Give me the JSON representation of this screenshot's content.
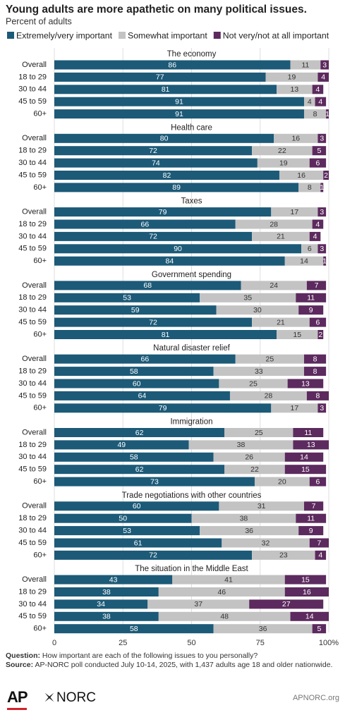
{
  "chart_data": {
    "type": "stacked-bar",
    "title": "Young adults are more apathetic on many political issues.",
    "subtitle": "Percent of adults",
    "series": [
      {
        "name": "Extremely/very important",
        "color": "#1c5a78"
      },
      {
        "name": "Somewhat important",
        "color": "#c3c3c3"
      },
      {
        "name": "Not very/not at all important",
        "color": "#5c2a5e"
      }
    ],
    "xlim": [
      0,
      100
    ],
    "xticks": [
      0,
      25,
      50,
      75,
      {
        "value": 100,
        "label": "100%"
      }
    ],
    "grid": true,
    "panels": [
      {
        "title": "The economy",
        "categories": [
          "Overall",
          "18 to 29",
          "30 to 44",
          "45 to 59",
          "60+"
        ],
        "values": [
          [
            86,
            77,
            81,
            91,
            91
          ],
          [
            11,
            19,
            13,
            4,
            8
          ],
          [
            3,
            4,
            4,
            4,
            1
          ]
        ]
      },
      {
        "title": "Health care",
        "categories": [
          "Overall",
          "18 to 29",
          "30 to 44",
          "45 to 59",
          "60+"
        ],
        "values": [
          [
            80,
            72,
            74,
            82,
            89
          ],
          [
            16,
            22,
            19,
            16,
            8
          ],
          [
            3,
            5,
            6,
            2,
            1
          ]
        ]
      },
      {
        "title": "Taxes",
        "categories": [
          "Overall",
          "18 to 29",
          "30 to 44",
          "45 to 59",
          "60+"
        ],
        "values": [
          [
            79,
            66,
            72,
            90,
            84
          ],
          [
            17,
            28,
            21,
            6,
            14
          ],
          [
            3,
            4,
            4,
            3,
            1
          ]
        ]
      },
      {
        "title": "Government spending",
        "categories": [
          "Overall",
          "18 to 29",
          "30 to 44",
          "45 to 59",
          "60+"
        ],
        "values": [
          [
            68,
            53,
            59,
            72,
            81
          ],
          [
            24,
            35,
            30,
            21,
            15
          ],
          [
            7,
            11,
            9,
            6,
            2
          ]
        ]
      },
      {
        "title": "Natural disaster relief",
        "categories": [
          "Overall",
          "18 to 29",
          "30 to 44",
          "45 to 59",
          "60+"
        ],
        "values": [
          [
            66,
            58,
            60,
            64,
            79
          ],
          [
            25,
            33,
            25,
            28,
            17
          ],
          [
            8,
            8,
            13,
            8,
            3
          ]
        ]
      },
      {
        "title": "Immigration",
        "categories": [
          "Overall",
          "18 to 29",
          "30 to 44",
          "45 to 59",
          "60+"
        ],
        "values": [
          [
            62,
            49,
            58,
            62,
            73
          ],
          [
            25,
            38,
            26,
            22,
            20
          ],
          [
            11,
            13,
            14,
            15,
            6
          ]
        ]
      },
      {
        "title": "Trade negotiations with other countries",
        "categories": [
          "Overall",
          "18 to 29",
          "30 to 44",
          "45 to 59",
          "60+"
        ],
        "values": [
          [
            60,
            50,
            53,
            61,
            72
          ],
          [
            31,
            38,
            36,
            32,
            23
          ],
          [
            7,
            11,
            9,
            7,
            4
          ]
        ]
      },
      {
        "title": "The situation in the Middle East",
        "categories": [
          "Overall",
          "18 to 29",
          "30 to 44",
          "45 to 59",
          "60+"
        ],
        "values": [
          [
            43,
            38,
            34,
            38,
            58
          ],
          [
            41,
            46,
            37,
            48,
            36
          ],
          [
            15,
            16,
            27,
            14,
            5
          ]
        ]
      }
    ]
  },
  "footer": {
    "question_label": "Question:",
    "question": "How important are each of the following issues to you personally?",
    "source_label": "Source:",
    "source": "AP-NORC poll conducted July 10-14, 2025, with 1,437 adults age 18 and older nationwide.",
    "logo_ap": "AP",
    "logo_norc": "NORC",
    "site": "APNORC.org"
  }
}
